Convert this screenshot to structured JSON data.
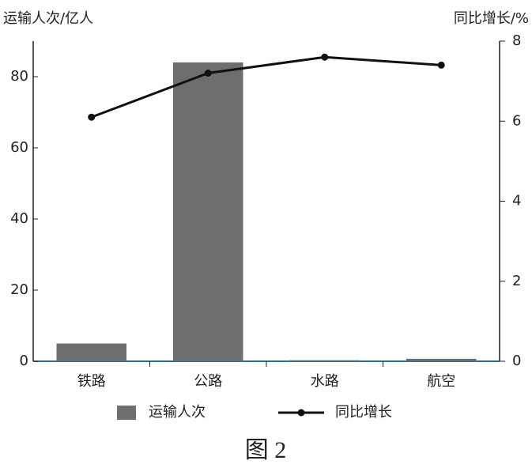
{
  "chart_data": {
    "type": "bar",
    "ylabel": "运输人次/亿人",
    "y2label": "同比增长/%",
    "caption": "图 2",
    "categories": [
      "铁路",
      "公路",
      "水路",
      "航空"
    ],
    "series": [
      {
        "name": "运输人次",
        "type": "bar",
        "color": "#6e6e6e",
        "values": [
          5,
          84,
          0.3,
          0.7
        ]
      },
      {
        "name": "同比增长",
        "type": "line",
        "axis": "y2",
        "color": "#111111",
        "values": [
          6.1,
          7.2,
          7.6,
          7.4
        ]
      }
    ],
    "ylim": [
      0,
      90
    ],
    "yticks": [
      0,
      20,
      40,
      60,
      80
    ],
    "y2lim": [
      0,
      8
    ],
    "y2ticks": [
      0,
      2,
      4,
      6,
      8
    ]
  }
}
